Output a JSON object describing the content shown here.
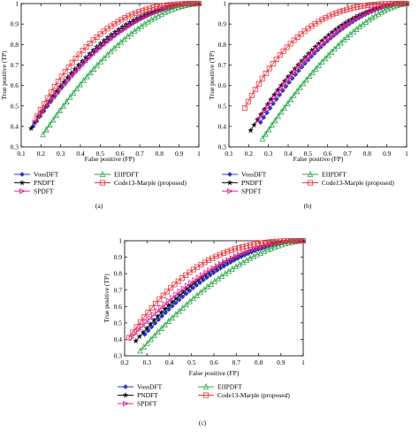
{
  "chart_data": [
    {
      "type": "line",
      "panel_label": "(a)",
      "xlabel": "False positive (FP)",
      "ylabel": "True positive (TP)",
      "xlim": [
        0.1,
        1
      ],
      "ylim": [
        0.3,
        1
      ],
      "xticks": [
        "0.1",
        "0.2",
        "0.3",
        "0.4",
        "0.5",
        "0.6",
        "0.7",
        "0.8",
        "0.9",
        "1"
      ],
      "yticks": [
        "0.3",
        "0.4",
        "0.5",
        "0.6",
        "0.7",
        "0.8",
        "0.9",
        "1"
      ],
      "legend": [
        "VossDFT",
        "EIIPDFT",
        "PNDFT",
        "Code13-Marple (proposed)",
        "SPDFT"
      ],
      "series": [
        {
          "name": "VossDFT",
          "color": "#2b35c9",
          "marker": "diamond",
          "x_start": 0.16,
          "y_start": 0.4,
          "curve": 2.6
        },
        {
          "name": "PNDFT",
          "color": "#111111",
          "marker": "star",
          "x_start": 0.15,
          "y_start": 0.39,
          "curve": 2.8
        },
        {
          "name": "SPDFT",
          "color": "#e0209a",
          "marker": "triangle-right",
          "x_start": 0.17,
          "y_start": 0.42,
          "curve": 2.5
        },
        {
          "name": "EIIPDFT",
          "color": "#27a845",
          "marker": "triangle-up",
          "x_start": 0.21,
          "y_start": 0.36,
          "curve": 2.2
        },
        {
          "name": "Code13-Marple (proposed)",
          "color": "#e8363f",
          "marker": "square",
          "x_start": 0.18,
          "y_start": 0.45,
          "curve": 3.6
        }
      ]
    },
    {
      "type": "line",
      "panel_label": "(b)",
      "xlabel": "False positive (FP)",
      "ylabel": "True positive (TP)",
      "xlim": [
        0.1,
        1
      ],
      "ylim": [
        0.3,
        1
      ],
      "xticks": [
        "0.1",
        "0.2",
        "0.3",
        "0.4",
        "0.5",
        "0.6",
        "0.7",
        "0.8",
        "0.9",
        "1"
      ],
      "yticks": [
        "0.3",
        "0.4",
        "0.5",
        "0.6",
        "0.7",
        "0.8",
        "0.9",
        "1"
      ],
      "legend": [
        "VossDFT",
        "EIIPDFT",
        "PNDFT",
        "Code13-Marple (proposed)",
        "SPDFT"
      ],
      "series": [
        {
          "name": "VossDFT",
          "color": "#2b35c9",
          "marker": "diamond",
          "x_start": 0.26,
          "y_start": 0.42,
          "curve": 2.4
        },
        {
          "name": "PNDFT",
          "color": "#111111",
          "marker": "star",
          "x_start": 0.21,
          "y_start": 0.38,
          "curve": 2.6
        },
        {
          "name": "SPDFT",
          "color": "#e0209a",
          "marker": "triangle-right",
          "x_start": 0.25,
          "y_start": 0.43,
          "curve": 2.4
        },
        {
          "name": "EIIPDFT",
          "color": "#27a845",
          "marker": "triangle-up",
          "x_start": 0.27,
          "y_start": 0.34,
          "curve": 1.9
        },
        {
          "name": "Code13-Marple (proposed)",
          "color": "#e8363f",
          "marker": "square",
          "x_start": 0.18,
          "y_start": 0.49,
          "curve": 4.0
        }
      ]
    },
    {
      "type": "line",
      "panel_label": "(c)",
      "xlabel": "False positive (FP)",
      "ylabel": "True positive (TP)",
      "xlim": [
        0.2,
        1
      ],
      "ylim": [
        0.3,
        1
      ],
      "xticks": [
        "0.2",
        "0.3",
        "0.4",
        "0.5",
        "0.6",
        "0.7",
        "0.8",
        "0.9",
        "1"
      ],
      "yticks": [
        "0.3",
        "0.4",
        "0.5",
        "0.6",
        "0.7",
        "0.8",
        "0.9",
        "1"
      ],
      "legend": [
        "VossDFT",
        "EIIPDFT",
        "PNDFT",
        "Code13-Marple (proposed)",
        "SPDFT"
      ],
      "series": [
        {
          "name": "VossDFT",
          "color": "#2b35c9",
          "marker": "diamond",
          "x_start": 0.29,
          "y_start": 0.43,
          "curve": 2.4
        },
        {
          "name": "PNDFT",
          "color": "#111111",
          "marker": "star",
          "x_start": 0.25,
          "y_start": 0.39,
          "curve": 2.6
        },
        {
          "name": "SPDFT",
          "color": "#e0209a",
          "marker": "triangle-right",
          "x_start": 0.23,
          "y_start": 0.41,
          "curve": 2.5
        },
        {
          "name": "EIIPDFT",
          "color": "#27a845",
          "marker": "triangle-up",
          "x_start": 0.27,
          "y_start": 0.33,
          "curve": 2.0
        },
        {
          "name": "Code13-Marple (proposed)",
          "color": "#e8363f",
          "marker": "square",
          "x_start": 0.22,
          "y_start": 0.41,
          "curve": 3.6
        }
      ]
    }
  ]
}
